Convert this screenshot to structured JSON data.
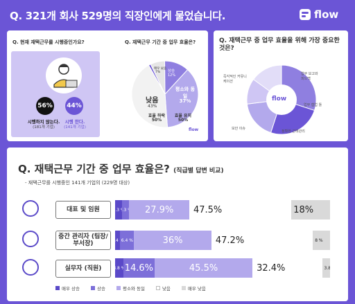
{
  "header": {
    "title": "Q. 321개 회사 529명의 직장인에게 물었습니다.",
    "brand": "flow"
  },
  "panel1": {
    "question": "Q. 현재 재택근무를 시행중인가요?",
    "no": {
      "pct": "56%",
      "label": "시행하지 않는다.",
      "sub": "(181개 기업)"
    },
    "yes": {
      "pct": "44%",
      "label": "시행 한다.",
      "sub": "(141개 기업)"
    },
    "pie_question": "Q. 재택근무 기간 중 업무 효율은?",
    "pie_labels": {
      "drop": "낮음",
      "drop_pct": "43%",
      "same": "평소와 동일",
      "same_pct": "37%",
      "up": "상승",
      "up_pct": "12%",
      "much_down": "매우 낮음",
      "much_down_pct": "7%"
    },
    "summary": {
      "down": "효율 하락",
      "down_pct": "50%",
      "keep": "효율 유지",
      "keep_pct": "50%"
    },
    "brand": "flow"
  },
  "panel2": {
    "question": "Q. 재택근무 중 업무 효율을 위해 가장 중요한 것은?",
    "labels": {
      "a": "업무 보고와 피드백",
      "b": "업무 협업 툴",
      "c": "정확한 근태관리",
      "d": "보안 이슈",
      "e": "즉각적인 커뮤니케이션"
    },
    "brand": "flow"
  },
  "chart_data": {
    "type": "bar",
    "title": "Q. 재택근무 기간 중 업무 효율은?",
    "title_suffix": "(직급별 답변 비교)",
    "subtitle": "- 재택근무를 시행중인 141개 기업의 (229명 대상)",
    "categories": [
      "대표 및 임원",
      "중간 관리자 (팀장/부서장)",
      "실무자 (직원)"
    ],
    "series": [
      {
        "name": "매우 상승",
        "color": "#5a49c8",
        "values": [
          3.3,
          2.4,
          3.8
        ]
      },
      {
        "name": "상승",
        "color": "#7d6fd9",
        "values": [
          3.3,
          6.4,
          14.6
        ]
      },
      {
        "name": "평소와 동일",
        "color": "#b3a9ec",
        "values": [
          27.9,
          36,
          45.5
        ]
      },
      {
        "name": "낮음",
        "color": "#ffffff",
        "values": [
          47.5,
          47.2,
          32.4
        ]
      },
      {
        "name": "매우 낮음",
        "color": "#d9d9d9",
        "values": [
          18,
          8,
          3.8
        ]
      }
    ],
    "labels": [
      [
        "3.3 %",
        "3.3 %",
        "27.9%",
        "47.5%",
        "18%"
      ],
      [
        "2.4 %",
        "6.4 %",
        "36%",
        "47.2%",
        "8 %"
      ],
      [
        "3.8 %",
        "14.6%",
        "45.5%",
        "32.4%",
        "3.8 %"
      ]
    ],
    "xlim": [
      0,
      100
    ]
  }
}
